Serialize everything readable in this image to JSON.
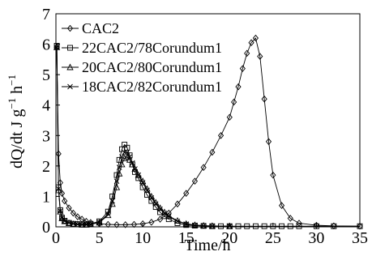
{
  "chart_data": {
    "type": "line",
    "title": "",
    "xlabel": "Time/h",
    "ylabel_parts": [
      "dQ/dt J g",
      "−1",
      " h",
      "−1"
    ],
    "xlim": [
      0,
      35
    ],
    "ylim": [
      0,
      7
    ],
    "xticks": [
      "0",
      "5",
      "10",
      "15",
      "20",
      "25",
      "30",
      "35"
    ],
    "yticks": [
      "0",
      "1",
      "2",
      "3",
      "4",
      "5",
      "6",
      "7"
    ],
    "grid": false,
    "legend_position": "top-left",
    "series": [
      {
        "name": "CAC2",
        "marker": "diamond",
        "x": [
          0.1,
          0.3,
          0.5,
          0.7,
          1.0,
          1.5,
          2,
          2.5,
          3,
          3.5,
          4,
          5,
          6,
          7,
          8,
          9,
          10,
          11,
          12,
          13,
          14,
          15,
          16,
          17,
          18,
          19,
          20,
          20.5,
          21,
          21.5,
          22,
          22.5,
          23,
          23.5,
          24,
          24.5,
          25,
          26,
          27,
          28,
          30,
          32,
          35
        ],
        "y": [
          5.9,
          2.4,
          1.45,
          1.1,
          0.85,
          0.62,
          0.45,
          0.33,
          0.25,
          0.18,
          0.14,
          0.1,
          0.08,
          0.07,
          0.07,
          0.08,
          0.1,
          0.15,
          0.25,
          0.45,
          0.75,
          1.1,
          1.5,
          1.95,
          2.45,
          3.0,
          3.6,
          4.1,
          4.6,
          5.2,
          5.7,
          6.05,
          6.2,
          5.6,
          4.2,
          2.8,
          1.7,
          0.7,
          0.28,
          0.12,
          0.05,
          0.03,
          0.02
        ]
      },
      {
        "name": "22CAC2/78Corundum1",
        "marker": "square",
        "x": [
          0.1,
          0.3,
          0.5,
          0.7,
          1.0,
          1.5,
          2,
          2.5,
          3,
          3.5,
          4,
          5,
          6,
          6.5,
          7,
          7.3,
          7.6,
          7.9,
          8.2,
          8.5,
          8.8,
          9.1,
          9.5,
          10,
          10.5,
          11,
          11.5,
          12,
          12.5,
          13,
          14,
          15,
          16,
          17,
          18,
          19,
          20,
          21,
          22,
          23,
          24,
          25,
          26,
          27,
          28,
          30,
          32,
          35
        ],
        "y": [
          5.95,
          1.3,
          0.55,
          0.3,
          0.2,
          0.13,
          0.1,
          0.09,
          0.08,
          0.08,
          0.1,
          0.18,
          0.5,
          1.0,
          1.7,
          2.2,
          2.55,
          2.7,
          2.6,
          2.35,
          2.05,
          1.8,
          1.6,
          1.3,
          1.05,
          0.85,
          0.65,
          0.48,
          0.35,
          0.25,
          0.12,
          0.06,
          0.04,
          0.03,
          0.02,
          0.02,
          0.02,
          0.02,
          0.02,
          0.02,
          0.02,
          0.02,
          0.02,
          0.02,
          0.02,
          0.02,
          0.02,
          0.02
        ]
      },
      {
        "name": "20CAC2/80Corundum1",
        "marker": "triangle",
        "x": [
          0.1,
          0.3,
          0.5,
          0.7,
          1.0,
          1.5,
          2,
          2.5,
          3,
          3.5,
          4,
          5,
          6,
          6.5,
          7,
          7.3,
          7.6,
          7.9,
          8.2,
          8.5,
          8.8,
          9.1,
          9.5,
          10,
          10.5,
          11,
          11.5,
          12,
          12.5,
          13,
          14,
          15,
          16,
          17,
          18,
          20
        ],
        "y": [
          5.9,
          1.2,
          0.5,
          0.28,
          0.18,
          0.12,
          0.09,
          0.08,
          0.07,
          0.07,
          0.08,
          0.14,
          0.38,
          0.75,
          1.3,
          1.75,
          2.05,
          2.25,
          2.3,
          2.2,
          2.05,
          1.9,
          1.7,
          1.5,
          1.25,
          1.0,
          0.8,
          0.62,
          0.48,
          0.36,
          0.2,
          0.1,
          0.06,
          0.04,
          0.03,
          0.02
        ]
      },
      {
        "name": "18CAC2/82Corundum1",
        "marker": "x",
        "x": [
          0.1,
          0.3,
          0.5,
          0.7,
          1.0,
          1.5,
          2,
          2.5,
          3,
          3.5,
          4,
          5,
          6,
          6.5,
          7,
          7.3,
          7.6,
          7.9,
          8.2,
          8.5,
          8.8,
          9.1,
          9.5,
          10,
          10.5,
          11,
          11.5,
          12,
          12.5,
          13,
          14,
          15,
          16,
          17,
          18,
          20
        ],
        "y": [
          5.9,
          1.25,
          0.52,
          0.29,
          0.19,
          0.13,
          0.1,
          0.08,
          0.07,
          0.07,
          0.08,
          0.15,
          0.42,
          0.85,
          1.5,
          1.95,
          2.3,
          2.45,
          2.45,
          2.3,
          2.1,
          1.9,
          1.7,
          1.45,
          1.2,
          0.95,
          0.75,
          0.58,
          0.44,
          0.33,
          0.18,
          0.09,
          0.05,
          0.03,
          0.02,
          0.02
        ]
      }
    ]
  }
}
